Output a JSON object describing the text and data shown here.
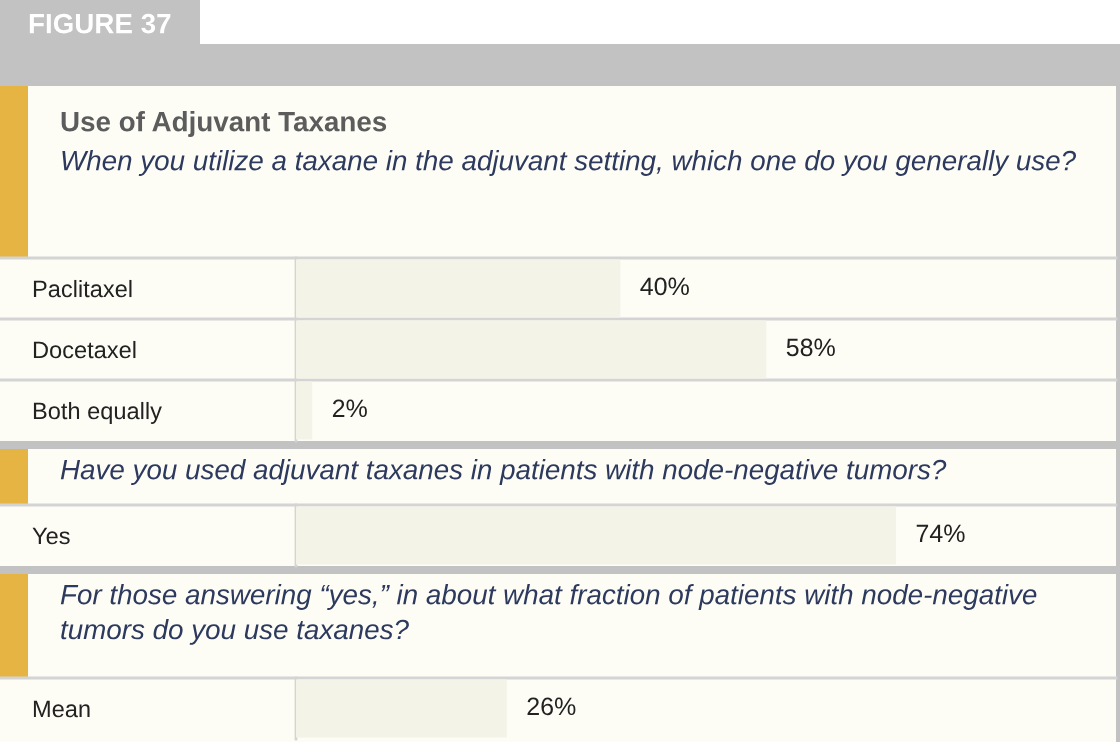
{
  "chart_data": {
    "type": "bar",
    "orientation": "horizontal",
    "title": "Use of Adjuvant Taxanes",
    "subtitle": "When you utilize a taxane in the adjuvant setting, which one do you generally use?",
    "annotations": [
      "FIGURE 37",
      "Have you used adjuvant taxanes in patients with node-negative tumors?",
      "For those answering “yes,” in about what fraction of patients with node-negative tumors do you use taxanes?"
    ],
    "categories": [
      "Paclitaxel",
      "Docetaxel",
      "Both equally",
      "Yes",
      "Mean"
    ],
    "values": [
      40,
      58,
      2,
      74,
      26
    ],
    "value_labels": [
      "40%",
      "58%",
      "2%",
      "74%",
      "26%"
    ],
    "color": "#f3f3e7",
    "tick_labels": "y"
  }
}
